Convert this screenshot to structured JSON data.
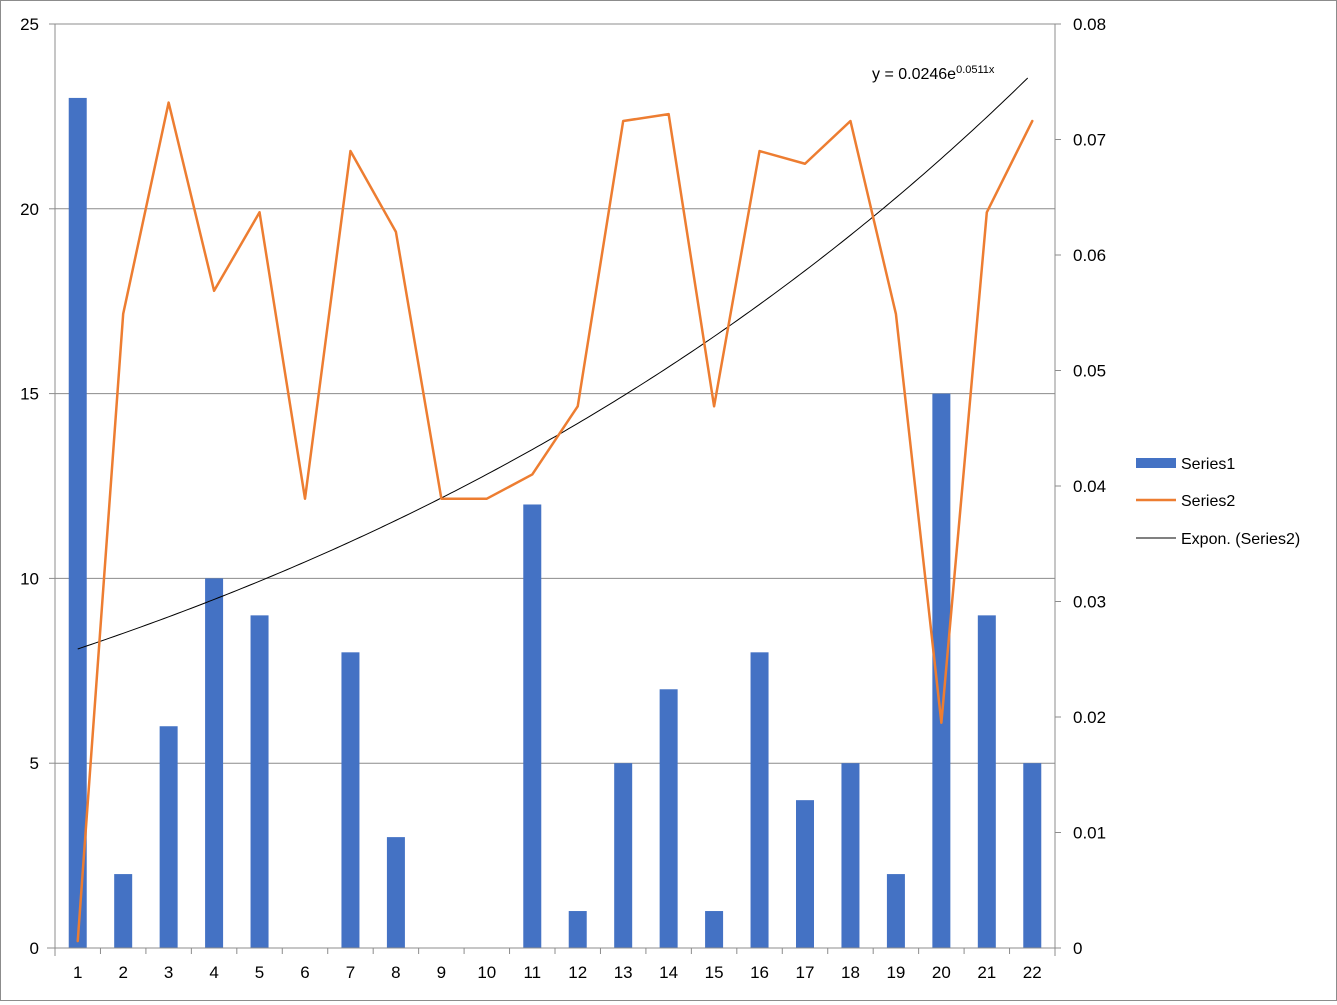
{
  "chart_data": {
    "type": "bar+line",
    "title": "",
    "xlabel": "",
    "ylabel": "",
    "y2label": "",
    "categories": [
      "1",
      "2",
      "3",
      "4",
      "5",
      "6",
      "7",
      "8",
      "9",
      "10",
      "11",
      "12",
      "13",
      "14",
      "15",
      "16",
      "17",
      "18",
      "19",
      "20",
      "21",
      "22"
    ],
    "series": [
      {
        "name": "Series1",
        "type": "bar",
        "axis": "left",
        "color": "#4472C4",
        "values": [
          23,
          2,
          6,
          10,
          9,
          0,
          8,
          3,
          0,
          0,
          12,
          1,
          5,
          7,
          1,
          8,
          4,
          5,
          2,
          15,
          9,
          5
        ]
      },
      {
        "name": "Series2",
        "type": "line",
        "axis": "right",
        "color": "#ED7D31",
        "values": [
          0.0006,
          0.0549,
          0.0732,
          0.0569,
          0.0637,
          0.0389,
          0.069,
          0.062,
          0.0389,
          0.0389,
          0.041,
          0.0469,
          0.0716,
          0.0722,
          0.0469,
          0.069,
          0.0679,
          0.0716,
          0.0549,
          0.0195,
          0.0637,
          0.0716
        ]
      }
    ],
    "trendline": {
      "name": "Expon. (Series2)",
      "type": "exponential",
      "a": 0.0246,
      "b": 0.0511,
      "color": "#000000",
      "equation_text": "y = 0.0246e",
      "equation_exp": "0.0511x"
    },
    "ylim": [
      0,
      25
    ],
    "yticks": [
      "0",
      "5",
      "10",
      "15",
      "20",
      "25"
    ],
    "y2lim": [
      0,
      0.08
    ],
    "y2ticks": [
      "0",
      "0.01",
      "0.02",
      "0.03",
      "0.04",
      "0.05",
      "0.06",
      "0.07",
      "0.08"
    ],
    "grid": true,
    "legend_position": "right"
  },
  "legend": {
    "items": [
      {
        "label": "Series1",
        "kind": "bar",
        "color": "#4472C4"
      },
      {
        "label": "Series2",
        "kind": "line",
        "color": "#ED7D31"
      },
      {
        "label": "Expon. (Series2)",
        "kind": "thin-line",
        "color": "#000000"
      }
    ]
  }
}
